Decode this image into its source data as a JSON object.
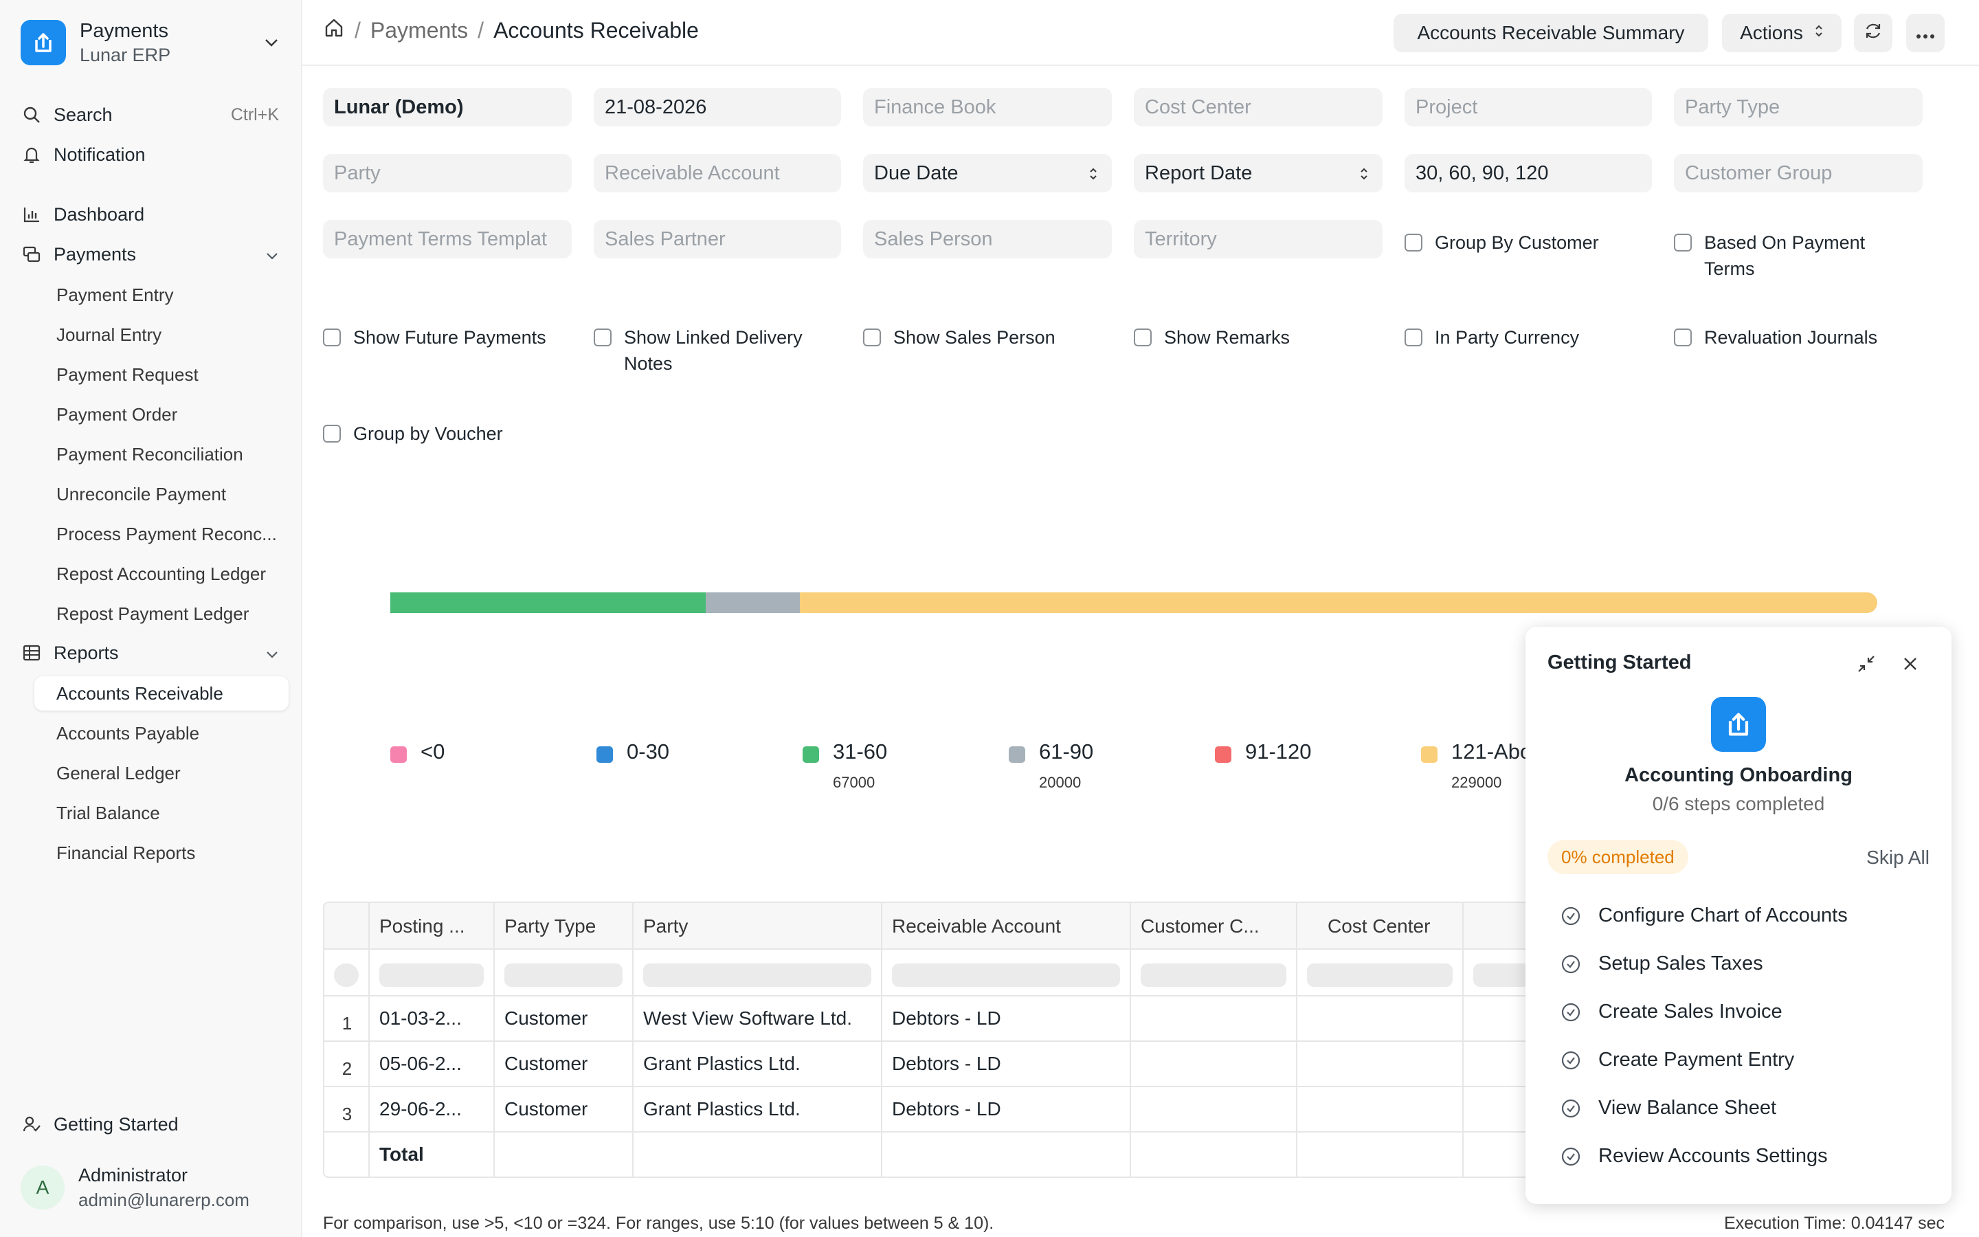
{
  "app": {
    "title": "Payments",
    "subtitle": "Lunar ERP"
  },
  "sidebar": {
    "search_label": "Search",
    "search_shortcut": "Ctrl+K",
    "notification_label": "Notification",
    "dashboard_label": "Dashboard",
    "payments_label": "Payments",
    "payments_items": [
      "Payment Entry",
      "Journal Entry",
      "Payment Request",
      "Payment Order",
      "Payment Reconciliation",
      "Unreconcile Payment",
      "Process Payment Reconc...",
      "Repost Accounting Ledger",
      "Repost Payment Ledger"
    ],
    "reports_label": "Reports",
    "reports_items": [
      "Accounts Receivable",
      "Accounts Payable",
      "General Ledger",
      "Trial Balance",
      "Financial Reports"
    ],
    "getting_started_label": "Getting Started",
    "user": {
      "initial": "A",
      "name": "Administrator",
      "email": "admin@lunarerp.com"
    }
  },
  "header": {
    "breadcrumbs": [
      "Payments",
      "Accounts Receivable"
    ],
    "summary_button": "Accounts Receivable Summary",
    "actions_button": "Actions"
  },
  "filters": {
    "company": "Lunar (Demo)",
    "date": "21-08-2026",
    "finance_book": "Finance Book",
    "cost_center": "Cost Center",
    "project": "Project",
    "party_type": "Party Type",
    "party": "Party",
    "receivable_account": "Receivable Account",
    "ageing_based_on": "Due Date",
    "calculate_ageing_with": "Report Date",
    "ageing_ranges": "30, 60, 90, 120",
    "customer_group": "Customer Group",
    "payment_terms_template": "Payment Terms Templat",
    "sales_partner": "Sales Partner",
    "sales_person": "Sales Person",
    "territory": "Territory",
    "group_by_customer": "Group By Customer",
    "based_on_payment_terms": [
      "Based On Payment",
      "Terms"
    ],
    "show_future_payments": "Show Future Payments",
    "show_linked_delivery_notes": [
      "Show Linked Delivery",
      "Notes"
    ],
    "show_sales_person": "Show Sales Person",
    "show_remarks": "Show Remarks",
    "in_party_currency": "In Party Currency",
    "revaluation_journals": "Revaluation Journals",
    "group_by_voucher": "Group by Voucher"
  },
  "chart_data": {
    "type": "bar",
    "stacked": true,
    "orientation": "horizontal",
    "categories": [
      "<0",
      "0-30",
      "31-60",
      "61-90",
      "91-120",
      "121-Abo"
    ],
    "values": [
      0,
      0,
      67000,
      20000,
      0,
      229000
    ],
    "value_labels": [
      "",
      "",
      "67000",
      "20000",
      "",
      "229000"
    ],
    "colors": [
      "#f683ae",
      "#318ad8",
      "#48bb74",
      "#a6b1b9",
      "#f56b6b",
      "#facf7a"
    ],
    "legend_position": "bottom"
  },
  "table": {
    "columns": [
      "Posting ...",
      "Party Type",
      "Party",
      "Receivable Account",
      "Customer C...",
      "Cost Center"
    ],
    "rows": [
      {
        "num": "1",
        "posting": "01-03-2...",
        "party_type": "Customer",
        "party": "West View Software Ltd.",
        "account": "Debtors - LD"
      },
      {
        "num": "2",
        "posting": "05-06-2...",
        "party_type": "Customer",
        "party": "Grant Plastics Ltd.",
        "account": "Debtors - LD"
      },
      {
        "num": "3",
        "posting": "29-06-2...",
        "party_type": "Customer",
        "party": "Grant Plastics Ltd.",
        "account": "Debtors - LD"
      }
    ],
    "total_label": "Total"
  },
  "footer": {
    "hint": "For comparison, use >5, <10 or =324. For ranges, use 5:10 (for values between 5 & 10).",
    "execution_time": "Execution Time: 0.04147 sec"
  },
  "getting_started": {
    "title": "Getting Started",
    "heading": "Accounting Onboarding",
    "steps_completed": "0/6 steps completed",
    "progress_badge": "0% completed",
    "progress_fraction": 0,
    "skip_label": "Skip All",
    "items": [
      "Configure Chart of Accounts",
      "Setup Sales Taxes",
      "Create Sales Invoice",
      "Create Payment Entry",
      "View Balance Sheet",
      "Review Accounts Settings"
    ]
  }
}
